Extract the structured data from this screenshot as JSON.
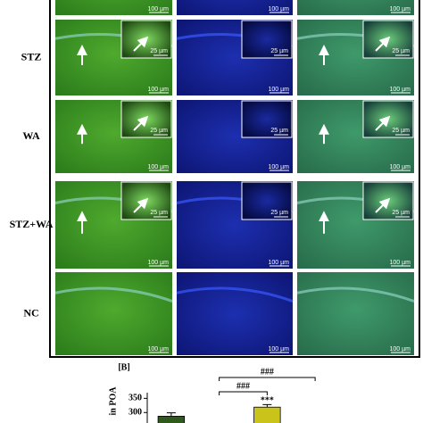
{
  "figure": {
    "row_labels": [
      "STZ",
      "WA",
      "STZ+WA",
      "NC"
    ],
    "scale_large": "100 µm",
    "scale_inset": "25 µm",
    "panel_b_label": "[B]"
  },
  "chart_data": {
    "type": "bar",
    "y_label": "in POA",
    "categories": [
      null,
      null,
      null,
      null
    ],
    "values": [
      287,
      null,
      319,
      null
    ],
    "errors": [
      12,
      null,
      9,
      null
    ],
    "colors": [
      "#2f5a1c",
      "#7a9a2a",
      "#c9c31a",
      "#5a7a3a"
    ],
    "ylim": [
      260,
      370
    ],
    "yticks": [
      300,
      350
    ],
    "annotations": [
      {
        "text": "***",
        "bar": 2
      }
    ],
    "brackets": [
      {
        "text": "###",
        "from": 1,
        "to": 3
      },
      {
        "text": "###",
        "from": 1,
        "to": 2
      }
    ]
  }
}
